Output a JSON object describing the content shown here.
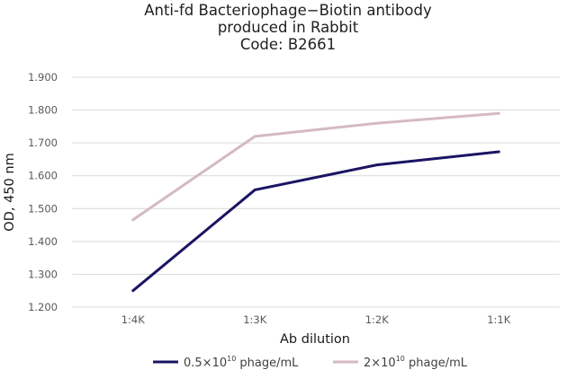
{
  "chart_data": {
    "type": "line",
    "title_lines": [
      "Anti-fd Bacteriophage−Biotin antibody",
      "produced in Rabbit",
      "Code: B2661"
    ],
    "xlabel": "Ab dilution",
    "ylabel": "OD, 450 nm",
    "categories": [
      "1:4K",
      "1:3K",
      "1:2K",
      "1:1K"
    ],
    "yticks": [
      "1.200",
      "1.300",
      "1.400",
      "1.500",
      "1.600",
      "1.700",
      "1.800",
      "1.900"
    ],
    "ylim": [
      1.2,
      1.9
    ],
    "grid": true,
    "legend_position": "bottom",
    "series": [
      {
        "name": "0.5×10",
        "name_sup": "10",
        "name_suffix": " phage/mL",
        "color": "#1b1464",
        "values": [
          1.25,
          1.557,
          1.633,
          1.673
        ]
      },
      {
        "name": "2×10",
        "name_sup": "10",
        "name_suffix": " phage/mL",
        "color": "#d4b9c4",
        "values": [
          1.466,
          1.72,
          1.76,
          1.79
        ]
      }
    ]
  }
}
